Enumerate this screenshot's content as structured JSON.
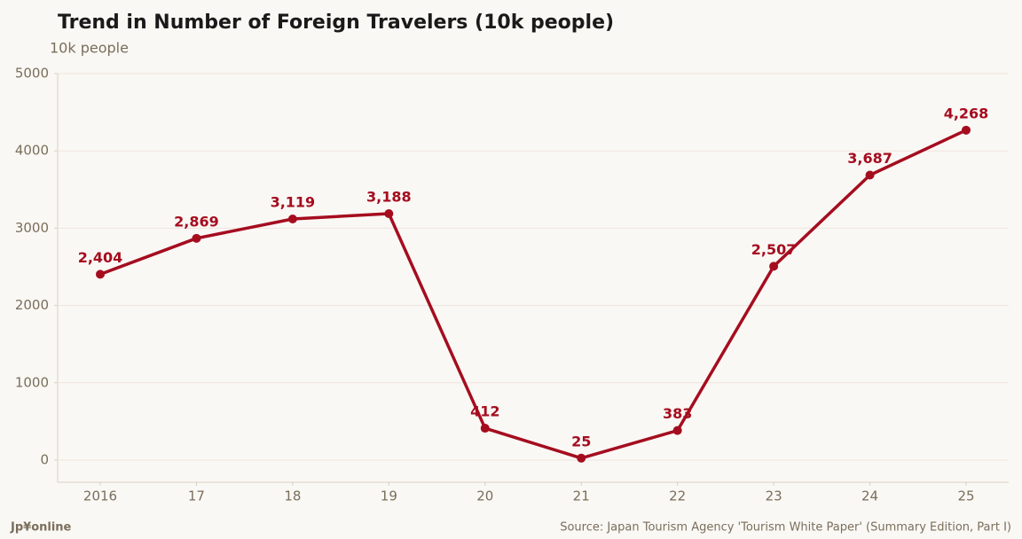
{
  "chart_data": {
    "type": "line",
    "title": "Trend in Number of Foreign Travelers (10k people)",
    "subtitle": "10k people",
    "brand": "Jp¥online",
    "source": "Source: Japan Tourism Agency 'Tourism White Paper' (Summary Edition, Part I)",
    "categories": [
      "2016",
      "17",
      "18",
      "19",
      "20",
      "21",
      "22",
      "23",
      "24",
      "25"
    ],
    "values": [
      2404,
      2869,
      3119,
      3188,
      412,
      25,
      383,
      2507,
      3687,
      4268
    ],
    "value_labels": [
      "2,404",
      "2,869",
      "3,119",
      "3,188",
      "412",
      "25",
      "383",
      "2,507",
      "3,687",
      "4,268"
    ],
    "color": "#a50d1f",
    "ylim": [
      -287,
      5000
    ],
    "yticks": [
      0,
      1000,
      2000,
      3000,
      4000,
      5000
    ],
    "grid": true
  }
}
